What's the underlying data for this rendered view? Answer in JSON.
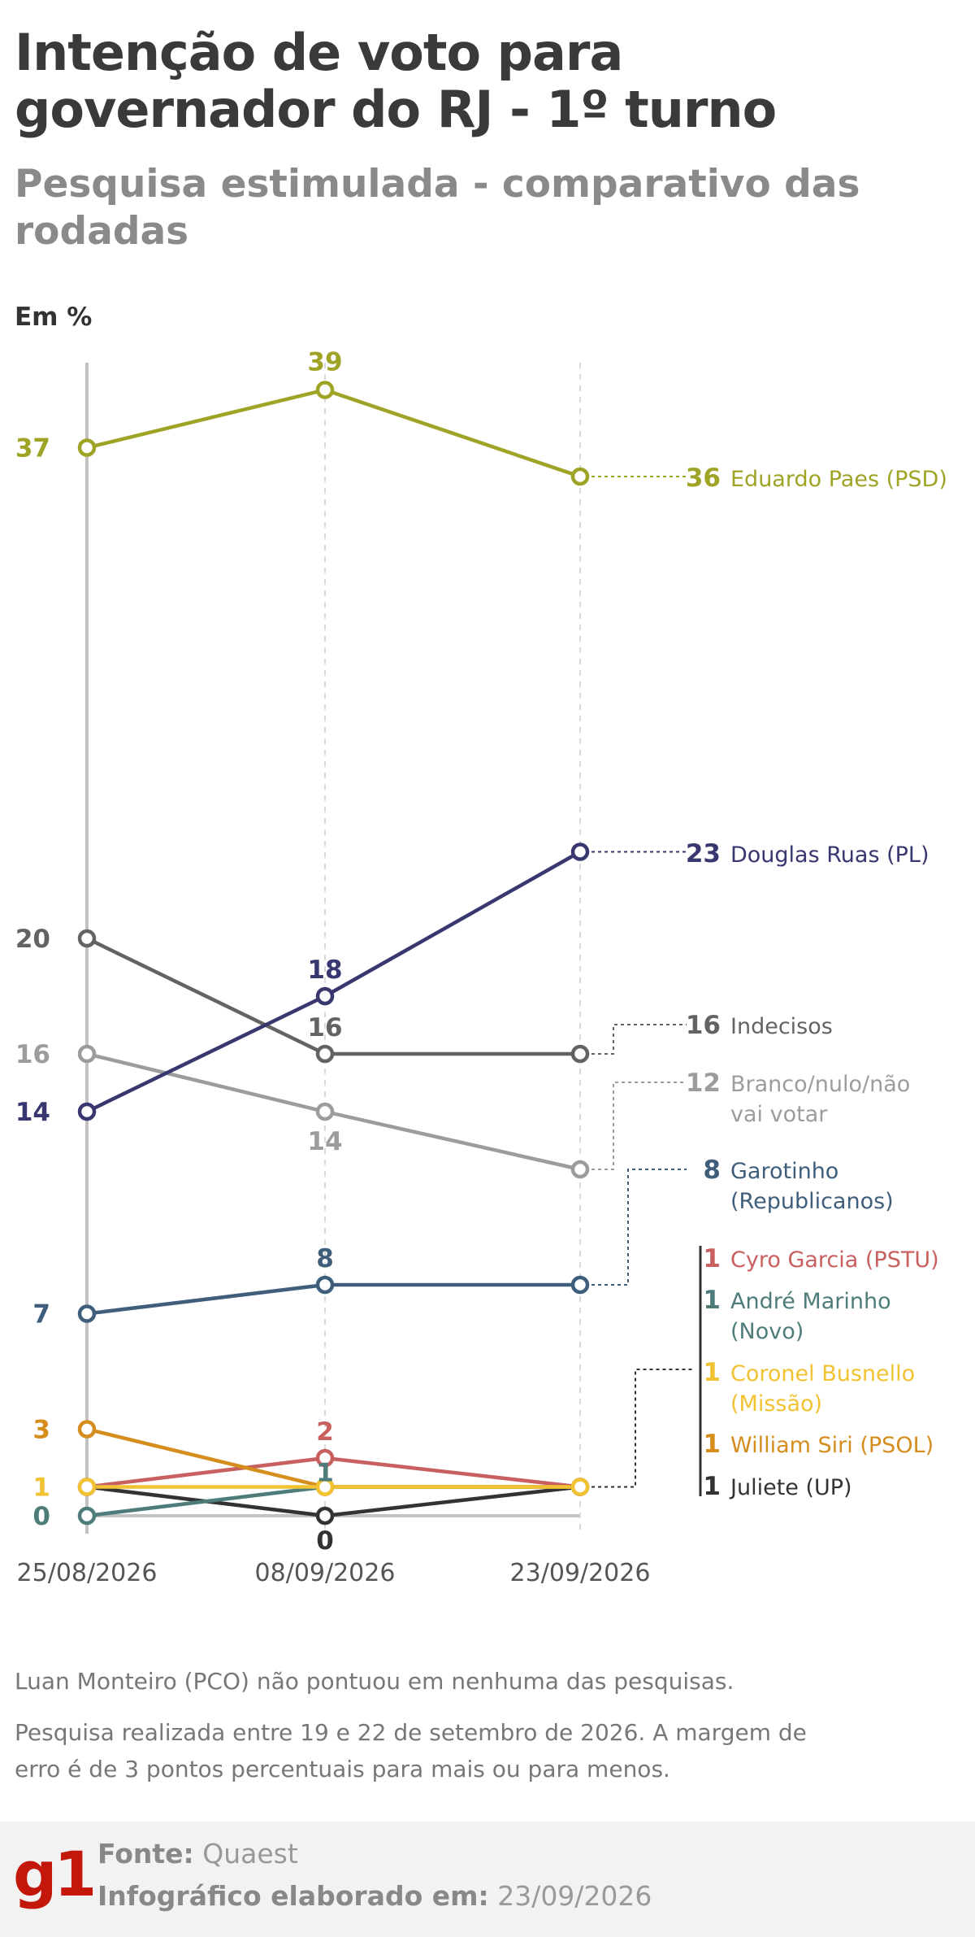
{
  "title": "Intenção de voto para governador do RJ - 1º turno",
  "subtitle": "Pesquisa estimulada - comparativo das rodadas",
  "unit_label": "Em %",
  "chart_data": {
    "type": "line",
    "x": [
      "25/08/2026",
      "08/09/2026",
      "23/09/2026"
    ],
    "ylim": [
      0,
      39
    ],
    "series": [
      {
        "name": "Eduardo Paes (PSD)",
        "color": "#9fa326",
        "values": [
          37,
          39,
          36
        ],
        "labels": [
          "37",
          "39",
          "36"
        ]
      },
      {
        "name": "Douglas Ruas (PL)",
        "color": "#383770",
        "values": [
          14,
          18,
          23
        ],
        "labels": [
          "14",
          "18",
          "23"
        ]
      },
      {
        "name": "Indecisos",
        "color": "#636363",
        "values": [
          20,
          16,
          16
        ],
        "labels": [
          "20",
          "16",
          "16"
        ]
      },
      {
        "name": "Branco/nulo/não vai votar",
        "color": "#9c9c9c",
        "values": [
          16,
          14,
          12
        ],
        "labels": [
          "16",
          "14",
          "12"
        ]
      },
      {
        "name": "Garotinho (Republicanos)",
        "color": "#3f5e7c",
        "values": [
          7,
          8,
          8
        ],
        "labels": [
          "7",
          "8",
          "8"
        ]
      },
      {
        "name": "Cyro Garcia (PSTU)",
        "color": "#c96060",
        "values": [
          1,
          2,
          1
        ],
        "labels": [
          "",
          "2",
          "1"
        ]
      },
      {
        "name": "André Marinho (Novo)",
        "color": "#4e7c7a",
        "values": [
          0,
          1,
          1
        ],
        "labels": [
          "0",
          "1",
          "1"
        ]
      },
      {
        "name": "Coronel Busnello (Missão)",
        "color": "#f1c232",
        "values": [
          1,
          1,
          1
        ],
        "labels": [
          "1",
          "",
          "1"
        ]
      },
      {
        "name": "William Siri (PSOL)",
        "color": "#d58d1e",
        "values": [
          3,
          1,
          1
        ],
        "labels": [
          "3",
          "",
          "1"
        ]
      },
      {
        "name": "Juliete (UP)",
        "color": "#333333",
        "values": [
          1,
          0,
          1
        ],
        "labels": [
          "",
          "0",
          "1"
        ]
      }
    ]
  },
  "notes": {
    "no_points": "Luan Monteiro (PCO) não pontuou em nenhuma das pesquisas.",
    "methodology": "Pesquisa realizada entre 19 e 22 de setembro de 2026. A margem de erro é de 3 pontos percentuais para mais ou para menos."
  },
  "footer": {
    "logo": "g1",
    "source_label": "Fonte:",
    "source": "Quaest",
    "date_label": "Infográfico elaborado em:",
    "date": "23/09/2026"
  }
}
